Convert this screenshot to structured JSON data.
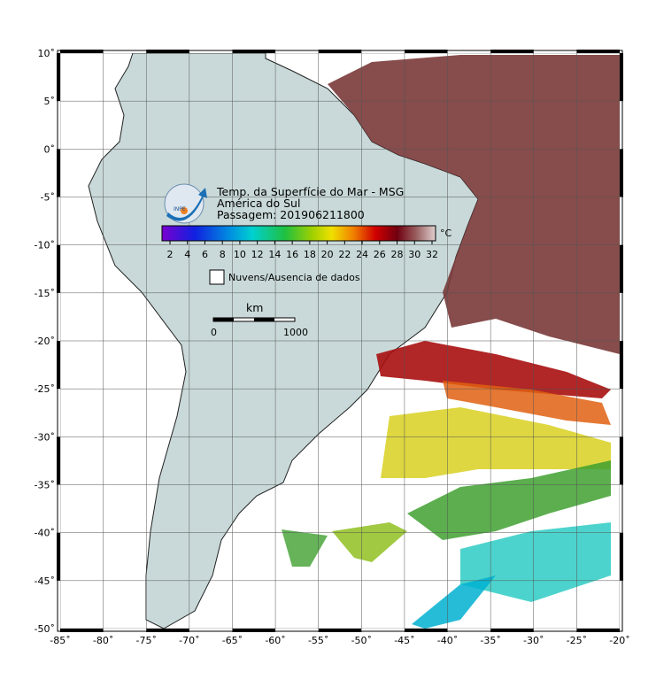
{
  "header": {
    "title": "Temp. da Superfície do Mar - MSG",
    "region": "América do Sul",
    "pass": "Passagem: 201906211800",
    "logo_text": "INPE"
  },
  "colorbar": {
    "unit": "°C",
    "ticks": [
      "2",
      "4",
      "6",
      "8",
      "10",
      "12",
      "14",
      "16",
      "18",
      "20",
      "22",
      "24",
      "26",
      "28",
      "30",
      "32"
    ]
  },
  "legend": {
    "label": "Nuvens/Ausencia de dados"
  },
  "scale": {
    "unit": "km",
    "start": "0",
    "end": "1000"
  },
  "axes": {
    "lat_labels": [
      "10˚",
      "5˚",
      "0˚",
      "-5˚",
      "-10˚",
      "-15˚",
      "-20˚",
      "-25˚",
      "-30˚",
      "-35˚",
      "-40˚",
      "-45˚",
      "-50˚"
    ],
    "lon_labels": [
      "-85˚",
      "-80˚",
      "-75˚",
      "-70˚",
      "-65˚",
      "-60˚",
      "-55˚",
      "-50˚",
      "-45˚",
      "-40˚",
      "-35˚",
      "-30˚",
      "-25˚",
      "-20˚"
    ]
  }
}
